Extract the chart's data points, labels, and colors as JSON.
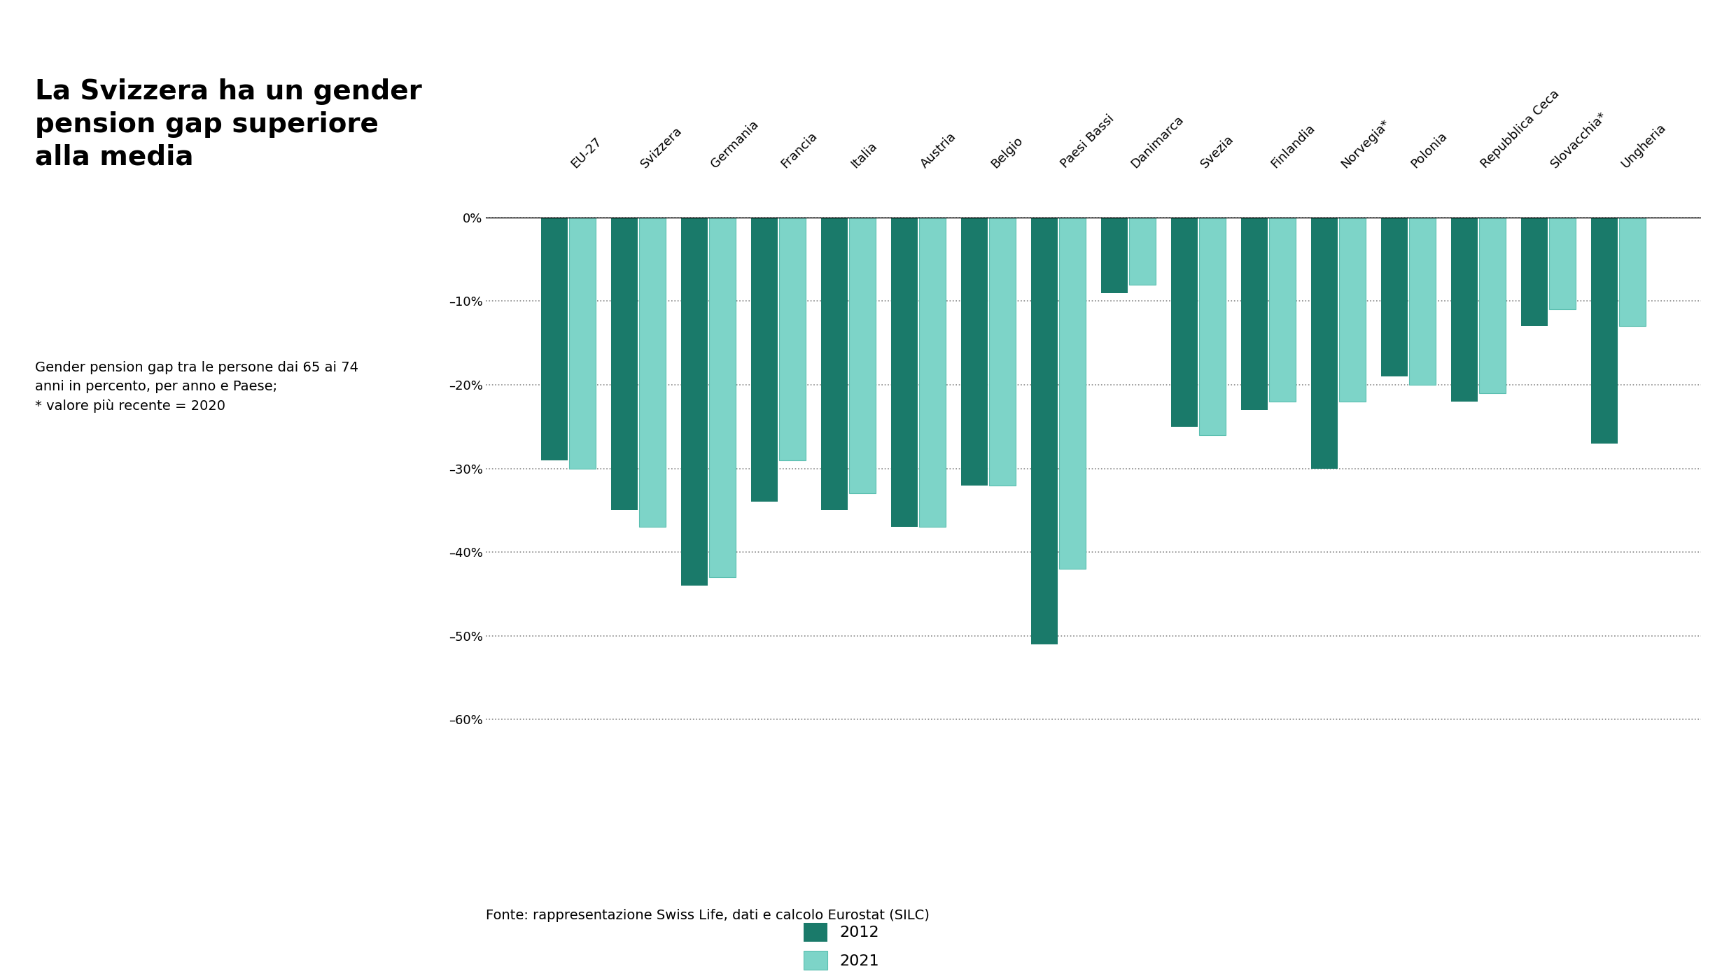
{
  "title": "La Svizzera ha un gender\npension gap superiore\nalla media",
  "subtitle": "Gender pension gap tra le persone dai 65 ai 74\nanni in percento, per anno e Paese;\n* valore più recente = 2020",
  "source": "Fonte: rappresentazione Swiss Life, dati e calcolo Eurostat (SILC)",
  "categories": [
    "EU-27",
    "Svizzera",
    "Germania",
    "Francia",
    "Italia",
    "Austria",
    "Belgio",
    "Paesi Bassi",
    "Danimarca",
    "Svezia",
    "Finlandia",
    "Norvegia*",
    "Polonia",
    "Repubblica Ceca",
    "Slovacchia*",
    "Ungheria"
  ],
  "values_2012": [
    -29,
    -35,
    -44,
    -34,
    -35,
    -37,
    -32,
    -51,
    -9,
    -25,
    -23,
    -30,
    -19,
    -22,
    -13,
    -27
  ],
  "values_2021": [
    -30,
    -37,
    -43,
    -29,
    -33,
    -37,
    -32,
    -42,
    -8,
    -26,
    -22,
    -22,
    -20,
    -21,
    -11,
    -13
  ],
  "color_2012": "#1a7a6a",
  "color_2021": "#7dd4c8",
  "color_2021_edge": "#5bbfb0",
  "background_color": "#ffffff",
  "ylim": [
    -65,
    5
  ],
  "yticks": [
    0,
    -10,
    -20,
    -30,
    -40,
    -50,
    -60
  ],
  "ytick_labels": [
    "0%",
    "–10%",
    "–20%",
    "–30%",
    "–40%",
    "–50%",
    "–60%"
  ],
  "legend_2012": "2012",
  "legend_2021": "2021",
  "title_fontsize": 28,
  "subtitle_fontsize": 14,
  "source_fontsize": 14,
  "axis_fontsize": 13,
  "legend_fontsize": 16,
  "bar_width": 0.38,
  "bar_gap": 0.02
}
